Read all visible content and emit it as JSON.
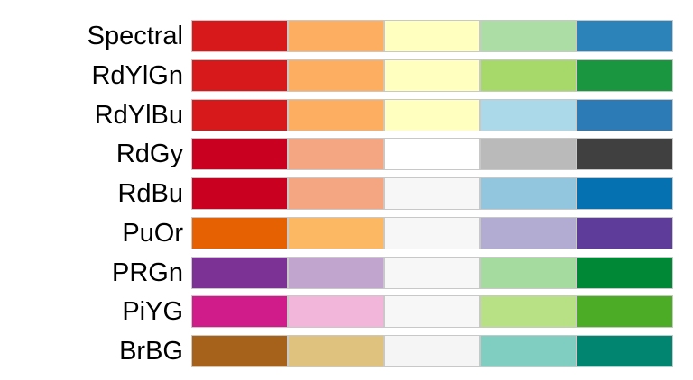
{
  "palettes": [
    {
      "name": "Spectral",
      "colors": [
        "#d7191c",
        "#fdae61",
        "#ffffbf",
        "#abdda4",
        "#2b83ba"
      ]
    },
    {
      "name": "RdYlGn",
      "colors": [
        "#d7191c",
        "#fdae61",
        "#ffffbf",
        "#a6d96a",
        "#1a9641"
      ]
    },
    {
      "name": "RdYlBu",
      "colors": [
        "#d7191c",
        "#fdae61",
        "#ffffbf",
        "#abd9e9",
        "#2c7bb6"
      ]
    },
    {
      "name": "RdGy",
      "colors": [
        "#ca0020",
        "#f4a582",
        "#ffffff",
        "#bababa",
        "#404040"
      ]
    },
    {
      "name": "RdBu",
      "colors": [
        "#ca0020",
        "#f4a582",
        "#f7f7f7",
        "#92c5de",
        "#0571b0"
      ]
    },
    {
      "name": "PuOr",
      "colors": [
        "#e66101",
        "#fdb863",
        "#f7f7f7",
        "#b2abd2",
        "#5e3c99"
      ]
    },
    {
      "name": "PRGn",
      "colors": [
        "#7b3294",
        "#c2a5cf",
        "#f7f7f7",
        "#a6dba0",
        "#008837"
      ]
    },
    {
      "name": "PiYG",
      "colors": [
        "#d01c8b",
        "#f1b6da",
        "#f7f7f7",
        "#b8e186",
        "#4dac26"
      ]
    },
    {
      "name": "BrBG",
      "colors": [
        "#a6611a",
        "#dfc27d",
        "#f5f5f5",
        "#80cdc1",
        "#018571"
      ]
    }
  ]
}
